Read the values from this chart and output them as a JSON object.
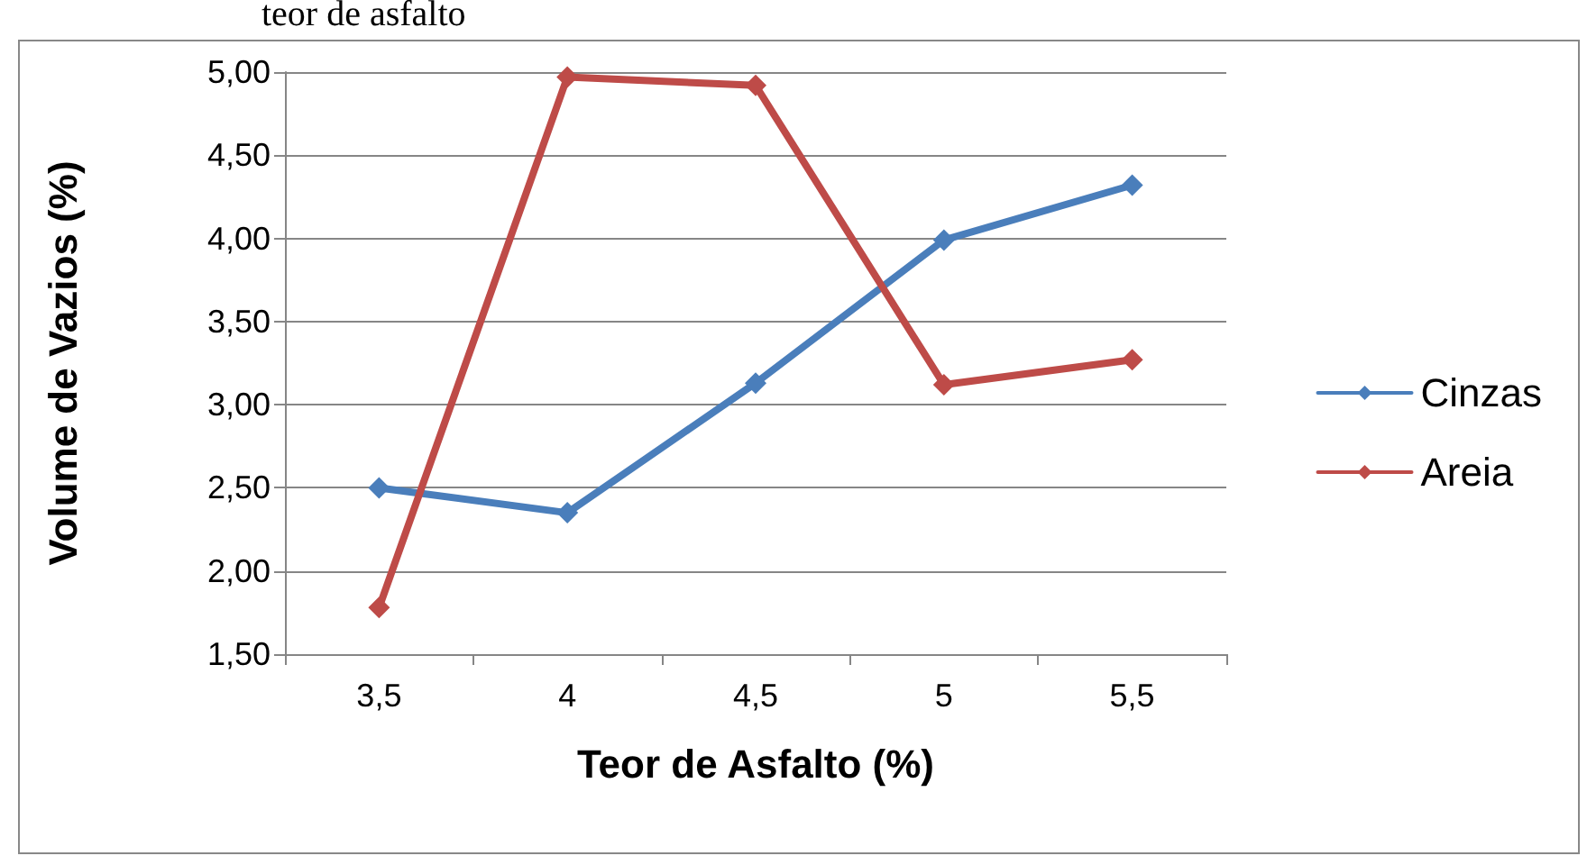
{
  "chart_data": {
    "type": "line",
    "xlabel": "Teor de Asfalto (%)",
    "ylabel": "Volume de Vazios (%)",
    "annotations": [
      "teor de asfalto"
    ],
    "categories": [
      "3,5",
      "4",
      "4,5",
      "5",
      "5,5"
    ],
    "series": [
      {
        "name": "Cinzas",
        "color": "#4a7ebb",
        "values": [
          2.5,
          2.35,
          3.13,
          3.99,
          4.32
        ]
      },
      {
        "name": "Areia",
        "color": "#be4b48",
        "values": [
          1.78,
          4.97,
          4.92,
          3.12,
          3.27
        ]
      }
    ],
    "ylim": [
      1.5,
      5.0
    ],
    "yticks": [
      {
        "value": 1.5,
        "label": "1,50"
      },
      {
        "value": 2.0,
        "label": "2,00"
      },
      {
        "value": 2.5,
        "label": "2,50"
      },
      {
        "value": 3.0,
        "label": "3,00"
      },
      {
        "value": 3.5,
        "label": "3,50"
      },
      {
        "value": 4.0,
        "label": "4,00"
      },
      {
        "value": 4.5,
        "label": "4,50"
      },
      {
        "value": 5.0,
        "label": "5,00"
      }
    ],
    "grid": "y",
    "legend": "right",
    "marker": "diamond",
    "line_style": "solid"
  }
}
